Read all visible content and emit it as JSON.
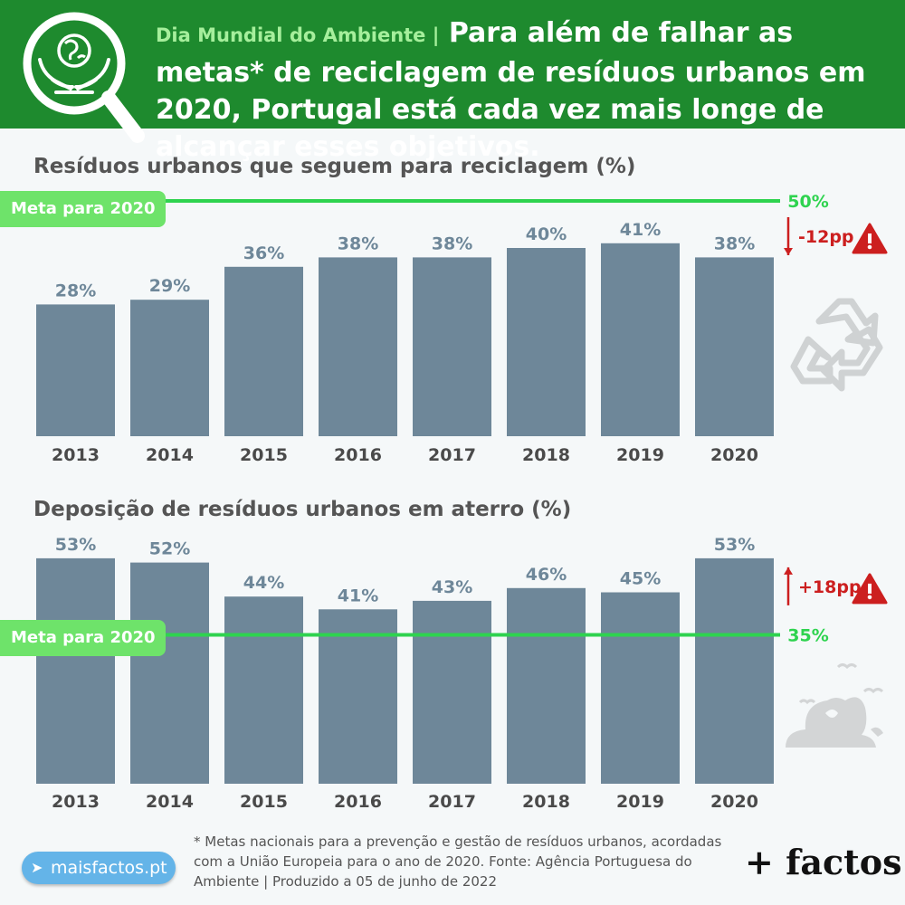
{
  "header": {
    "kicker": "Dia Mundial do Ambiente |",
    "title": "Para além de falhar as metas* de reciclagem de resíduos urbanos em 2020, Portugal está cada vez mais longe de alcançar esses objetivos."
  },
  "colors": {
    "header_bg": "#1e8a2e",
    "bar": "#6e8799",
    "target_line": "#2ed34f",
    "warning": "#cc1f1f",
    "value_label": "#6e8799"
  },
  "icons": {
    "header_logo": "globe-in-hands-magnifier-icon",
    "recycle": "recycle-icon",
    "landfill": "landfill-icon",
    "warning": "warning-triangle-icon"
  },
  "chart_data": [
    {
      "type": "bar",
      "title": "Resíduos urbanos que seguem para reciclagem (%)",
      "categories": [
        "2013",
        "2014",
        "2015",
        "2016",
        "2017",
        "2018",
        "2019",
        "2020"
      ],
      "values": [
        28,
        29,
        36,
        38,
        38,
        40,
        41,
        38
      ],
      "value_labels": [
        "28%",
        "29%",
        "36%",
        "38%",
        "38%",
        "40%",
        "41%",
        "38%"
      ],
      "target": {
        "label": "Meta para 2020",
        "value": 50,
        "value_label": "50%"
      },
      "gap_label": "-12pp",
      "gap_direction": "down"
    },
    {
      "type": "bar",
      "title": "Deposição de resíduos urbanos em aterro (%)",
      "categories": [
        "2013",
        "2014",
        "2015",
        "2016",
        "2017",
        "2018",
        "2019",
        "2020"
      ],
      "values": [
        53,
        52,
        44,
        41,
        43,
        46,
        45,
        53
      ],
      "value_labels": [
        "53%",
        "52%",
        "44%",
        "41%",
        "43%",
        "46%",
        "45%",
        "53%"
      ],
      "target": {
        "label": "Meta para 2020",
        "value": 35,
        "value_label": "35%"
      },
      "gap_label": "+18pp",
      "gap_direction": "up"
    }
  ],
  "footnote": "* Metas nacionais para a prevenção e gestão de resíduos urbanos, acordadas com a União Europeia para o ano de 2020. Fonte: Agência Portuguesa do Ambiente | Produzido a 05 de junho de 2022",
  "site_badge": "maisfactos.pt",
  "brand": "+ factos"
}
